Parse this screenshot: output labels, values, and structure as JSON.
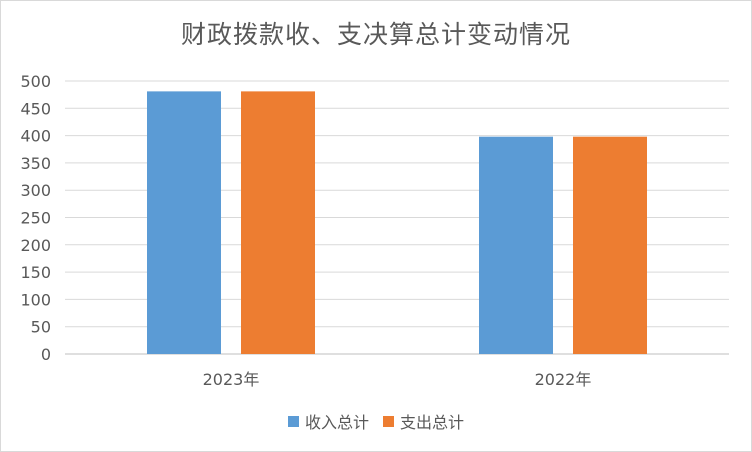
{
  "chart_data": {
    "type": "bar",
    "title": "财政拨款收、支决算总计变动情况",
    "categories": [
      "2023年",
      "2022年"
    ],
    "series": [
      {
        "name": "收入总计",
        "values": [
          481,
          398
        ],
        "color": "#5b9bd5"
      },
      {
        "name": "支出总计",
        "values": [
          481,
          398
        ],
        "color": "#ed7d31"
      }
    ],
    "y_ticks": [
      "0",
      "50",
      "100",
      "150",
      "200",
      "250",
      "300",
      "350",
      "400",
      "450",
      "500"
    ],
    "ylim": [
      0,
      500
    ],
    "grid": true,
    "legend_position": "bottom"
  }
}
